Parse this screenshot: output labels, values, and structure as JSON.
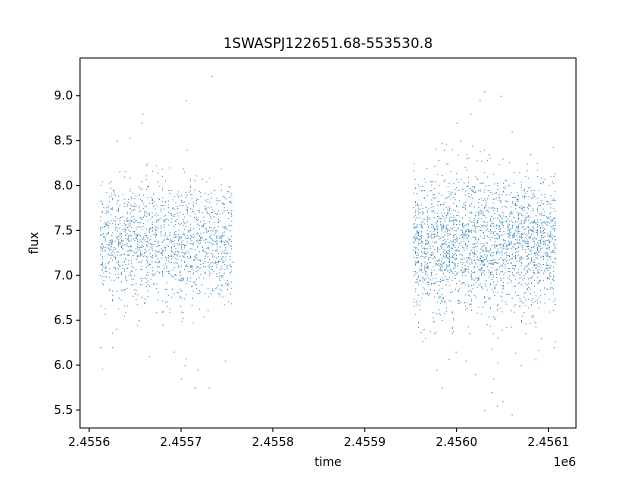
{
  "chart_data": {
    "type": "scatter",
    "title": "1SWASPJ122651.68-553530.8",
    "xlabel": "time",
    "ylabel": "flux",
    "x_offset_label": "1e6",
    "xlim": [
      2455590,
      2456130
    ],
    "ylim": [
      5.3,
      9.42
    ],
    "x_ticks": [
      2455600,
      2455700,
      2455800,
      2455900,
      2456000,
      2456100
    ],
    "x_tick_labels": [
      "2.4556",
      "2.4557",
      "2.4558",
      "2.4559",
      "2.4560",
      "2.4561"
    ],
    "y_ticks": [
      5.5,
      6.0,
      6.5,
      7.0,
      7.5,
      8.0,
      8.5,
      9.0
    ],
    "y_tick_labels": [
      "5.5",
      "6.0",
      "6.5",
      "7.0",
      "7.5",
      "8.0",
      "8.5",
      "9.0"
    ],
    "grid": false,
    "marker_color": "#1f77b4",
    "series": [
      {
        "points": [
          [
            2455613,
            7.35
          ],
          [
            2455614,
            7.8
          ],
          [
            2455615,
            6.9
          ],
          [
            2455616,
            7.55
          ],
          [
            2455618,
            7.1
          ],
          [
            2455620,
            7.6
          ],
          [
            2455622,
            6.85
          ],
          [
            2455624,
            7.45
          ],
          [
            2455626,
            7.95
          ],
          [
            2455628,
            7.2
          ],
          [
            2455630,
            7.5
          ],
          [
            2455632,
            6.75
          ],
          [
            2455634,
            7.65
          ],
          [
            2455636,
            7.3
          ],
          [
            2455638,
            8.1
          ],
          [
            2455640,
            6.95
          ],
          [
            2455642,
            7.4
          ],
          [
            2455644,
            7.75
          ],
          [
            2455646,
            7.05
          ],
          [
            2455648,
            7.6
          ],
          [
            2455650,
            6.8
          ],
          [
            2455652,
            7.35
          ],
          [
            2455654,
            7.9
          ],
          [
            2455656,
            7.15
          ],
          [
            2455658,
            7.55
          ],
          [
            2455660,
            6.7
          ],
          [
            2455662,
            7.45
          ],
          [
            2455664,
            8.0
          ],
          [
            2455666,
            7.25
          ],
          [
            2455668,
            7.7
          ],
          [
            2455670,
            6.9
          ],
          [
            2455672,
            7.5
          ],
          [
            2455674,
            7.1
          ],
          [
            2455676,
            7.85
          ],
          [
            2455678,
            7.3
          ],
          [
            2455680,
            6.6
          ],
          [
            2455682,
            7.6
          ],
          [
            2455684,
            7.2
          ],
          [
            2455686,
            7.95
          ],
          [
            2455688,
            7.4
          ],
          [
            2455690,
            6.85
          ],
          [
            2455692,
            7.55
          ],
          [
            2455694,
            7.15
          ],
          [
            2455696,
            7.75
          ],
          [
            2455698,
            7.35
          ],
          [
            2455700,
            6.95
          ],
          [
            2455702,
            7.6
          ],
          [
            2455704,
            7.25
          ],
          [
            2455706,
            7.9
          ],
          [
            2455708,
            7.05
          ],
          [
            2455710,
            7.45
          ],
          [
            2455712,
            6.75
          ],
          [
            2455714,
            7.65
          ],
          [
            2455716,
            7.2
          ],
          [
            2455718,
            7.85
          ],
          [
            2455720,
            7.4
          ],
          [
            2455722,
            6.9
          ],
          [
            2455724,
            7.55
          ],
          [
            2455726,
            7.1
          ],
          [
            2455728,
            7.7
          ],
          [
            2455730,
            7.3
          ],
          [
            2455732,
            6.8
          ],
          [
            2455734,
            7.5
          ],
          [
            2455736,
            7.95
          ],
          [
            2455738,
            7.2
          ],
          [
            2455740,
            7.6
          ],
          [
            2455742,
            6.95
          ],
          [
            2455744,
            7.45
          ],
          [
            2455746,
            7.8
          ],
          [
            2455748,
            7.35
          ],
          [
            2455750,
            6.85
          ],
          [
            2455752,
            7.4
          ],
          [
            2455754,
            7.7
          ],
          [
            2455756,
            7.15
          ],
          [
            2455630,
            8.5
          ],
          [
            2455658,
            8.8
          ],
          [
            2455705,
            8.95
          ],
          [
            2455733,
            9.22
          ],
          [
            2455706,
            8.4
          ],
          [
            2455657,
            8.7
          ],
          [
            2455612,
            6.2
          ],
          [
            2455625,
            6.2
          ],
          [
            2455665,
            6.1
          ],
          [
            2455704,
            6.0
          ],
          [
            2455680,
            6.45
          ],
          [
            2455700,
            5.85
          ],
          [
            2455718,
            5.95
          ],
          [
            2455715,
            5.75
          ],
          [
            2455748,
            6.05
          ],
          [
            2455730,
            5.75
          ],
          [
            2455654,
            6.5
          ],
          [
            2455692,
            6.15
          ]
        ]
      },
      {
        "points": [
          [
            2455955,
            7.3
          ],
          [
            2455957,
            7.8
          ],
          [
            2455960,
            6.95
          ],
          [
            2455962,
            7.55
          ],
          [
            2455965,
            7.15
          ],
          [
            2455968,
            7.65
          ],
          [
            2455970,
            6.8
          ],
          [
            2455972,
            7.45
          ],
          [
            2455974,
            7.9
          ],
          [
            2455976,
            7.2
          ],
          [
            2455978,
            7.55
          ],
          [
            2455980,
            6.75
          ],
          [
            2455982,
            7.6
          ],
          [
            2455984,
            7.35
          ],
          [
            2455986,
            8.05
          ],
          [
            2455988,
            6.9
          ],
          [
            2455990,
            7.45
          ],
          [
            2455992,
            7.75
          ],
          [
            2455994,
            7.05
          ],
          [
            2455996,
            7.6
          ],
          [
            2455998,
            6.85
          ],
          [
            2456000,
            7.4
          ],
          [
            2456002,
            7.95
          ],
          [
            2456004,
            7.15
          ],
          [
            2456006,
            7.55
          ],
          [
            2456008,
            6.7
          ],
          [
            2456010,
            7.5
          ],
          [
            2456012,
            8.0
          ],
          [
            2456014,
            7.25
          ],
          [
            2456016,
            7.7
          ],
          [
            2456018,
            6.9
          ],
          [
            2456020,
            7.5
          ],
          [
            2456022,
            7.1
          ],
          [
            2456024,
            7.85
          ],
          [
            2456026,
            7.3
          ],
          [
            2456028,
            6.65
          ],
          [
            2456030,
            7.6
          ],
          [
            2456032,
            7.2
          ],
          [
            2456034,
            7.95
          ],
          [
            2456036,
            7.4
          ],
          [
            2456038,
            6.85
          ],
          [
            2456040,
            7.55
          ],
          [
            2456042,
            7.15
          ],
          [
            2456044,
            7.75
          ],
          [
            2456046,
            7.35
          ],
          [
            2456048,
            6.95
          ],
          [
            2456050,
            7.6
          ],
          [
            2456052,
            7.25
          ],
          [
            2456054,
            7.9
          ],
          [
            2456056,
            7.05
          ],
          [
            2456058,
            7.45
          ],
          [
            2456060,
            6.75
          ],
          [
            2456062,
            7.65
          ],
          [
            2456064,
            7.2
          ],
          [
            2456066,
            7.85
          ],
          [
            2456068,
            7.4
          ],
          [
            2456070,
            6.9
          ],
          [
            2456072,
            7.55
          ],
          [
            2456074,
            7.1
          ],
          [
            2456076,
            7.7
          ],
          [
            2456078,
            7.3
          ],
          [
            2456080,
            6.8
          ],
          [
            2456082,
            7.5
          ],
          [
            2456084,
            7.95
          ],
          [
            2456086,
            7.2
          ],
          [
            2456088,
            7.6
          ],
          [
            2456090,
            6.95
          ],
          [
            2456092,
            7.45
          ],
          [
            2456094,
            7.8
          ],
          [
            2456096,
            7.35
          ],
          [
            2456098,
            6.85
          ],
          [
            2456100,
            7.4
          ],
          [
            2456102,
            7.7
          ],
          [
            2456104,
            7.15
          ],
          [
            2456106,
            7.5
          ],
          [
            2455986,
            8.4
          ],
          [
            2456000,
            8.7
          ],
          [
            2456025,
            8.95
          ],
          [
            2456030,
            9.05
          ],
          [
            2456048,
            9.0
          ],
          [
            2456060,
            8.6
          ],
          [
            2456004,
            8.5
          ],
          [
            2456080,
            8.35
          ],
          [
            2456015,
            8.8
          ],
          [
            2456050,
            8.3
          ],
          [
            2455978,
            5.95
          ],
          [
            2455984,
            5.75
          ],
          [
            2455999,
            6.15
          ],
          [
            2456020,
            5.9
          ],
          [
            2456030,
            5.5
          ],
          [
            2456038,
            5.7
          ],
          [
            2456044,
            5.55
          ],
          [
            2456050,
            5.6
          ],
          [
            2456060,
            5.45
          ],
          [
            2456040,
            5.85
          ],
          [
            2456070,
            6.0
          ],
          [
            2456092,
            6.3
          ],
          [
            2456106,
            6.2
          ],
          [
            2456010,
            6.05
          ],
          [
            2455964,
            6.4
          ]
        ]
      }
    ],
    "dense_clouds": [
      {
        "x": [
          2455612,
          2455756
        ],
        "y_core": [
          6.7,
          8.05
        ],
        "count": 1400
      },
      {
        "x": [
          2455953,
          2456108
        ],
        "y_core": [
          6.6,
          8.1
        ],
        "count": 2200
      }
    ]
  }
}
